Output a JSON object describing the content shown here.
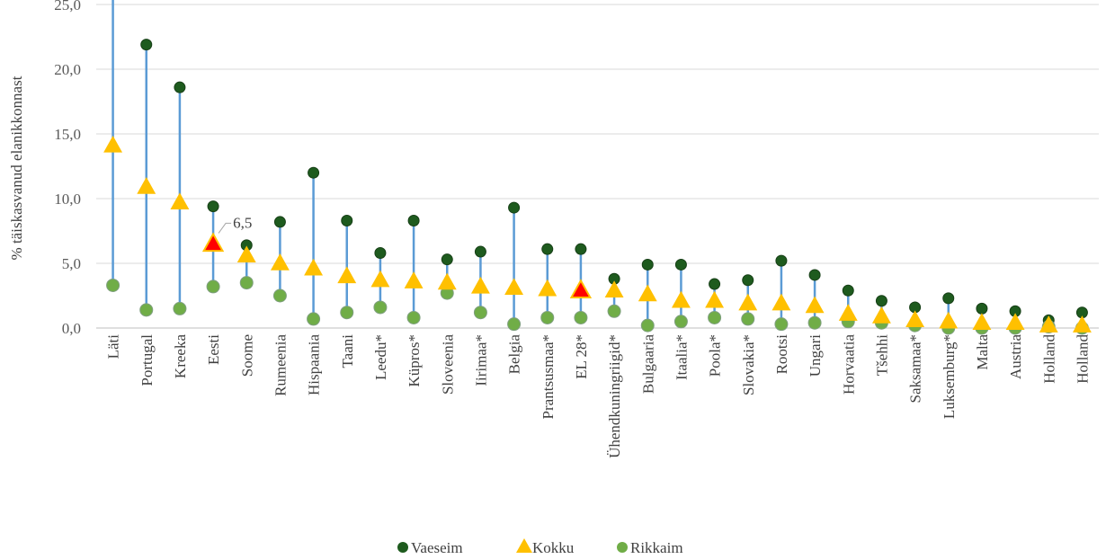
{
  "chart_data": {
    "type": "scatter",
    "title": "",
    "xlabel": "",
    "ylabel": "% täiskasvanud elanikkonnast",
    "ylim": [
      0,
      25
    ],
    "yticks": [
      "0,0",
      "5,0",
      "10,0",
      "15,0",
      "20,0",
      "25,0"
    ],
    "grid": true,
    "legend_position": "bottom",
    "categories": [
      "Läti",
      "Portugal",
      "Kreeka",
      "Eesti",
      "Soome",
      "Rumeenia",
      "Hispaania",
      "Taani",
      "Leedu*",
      "Küpros*",
      "Sloveenia",
      "Iirimaa*",
      "Belgia",
      "Prantsusmaa*",
      "EL 28*",
      "Ühendkuningriigid*",
      "Bulgaaria",
      "Itaalia*",
      "Poola*",
      "Slovakia*",
      "Rootsi",
      "Ungari",
      "Horvaatia",
      "Tšehhi",
      "Saksamaa*",
      "Luksemburg*",
      "Malta",
      "Austria",
      "Holland",
      "Holland"
    ],
    "series": [
      {
        "name": "Vaeseim",
        "color": "#1e5b1e",
        "marker": "circle",
        "values": [
          26.3,
          21.9,
          18.6,
          9.4,
          6.4,
          8.2,
          12.0,
          8.3,
          5.8,
          8.3,
          5.3,
          5.9,
          9.3,
          6.1,
          6.1,
          3.8,
          4.9,
          4.9,
          3.4,
          3.7,
          5.2,
          4.1,
          2.9,
          2.1,
          1.6,
          2.3,
          1.5,
          1.3,
          0.6,
          1.2
        ]
      },
      {
        "name": "Kokku",
        "color": "#ffc000",
        "marker": "triangle",
        "values": [
          14.1,
          10.9,
          9.7,
          6.5,
          5.6,
          5.0,
          4.6,
          4.0,
          3.7,
          3.6,
          3.5,
          3.2,
          3.1,
          3.0,
          2.9,
          2.9,
          2.6,
          2.1,
          2.1,
          1.9,
          1.9,
          1.7,
          1.1,
          0.9,
          0.6,
          0.5,
          0.4,
          0.4,
          0.2,
          0.2
        ]
      },
      {
        "name": "Rikkaim",
        "color": "#70ad47",
        "marker": "circle",
        "values": [
          3.3,
          1.4,
          1.5,
          3.2,
          3.5,
          2.5,
          0.7,
          1.2,
          1.6,
          0.8,
          2.7,
          1.2,
          0.3,
          0.8,
          0.8,
          1.3,
          0.2,
          0.5,
          0.8,
          0.7,
          0.3,
          0.4,
          0.5,
          0.4,
          0.2,
          0.0,
          0.0,
          0.0,
          0.1,
          0.0
        ]
      }
    ],
    "range_line_color": "#5b9bd5",
    "highlight": [
      {
        "category_index": 3,
        "color": "#ff0000",
        "label": "6,5"
      },
      {
        "category_index": 14,
        "color": "#ff0000"
      }
    ]
  }
}
